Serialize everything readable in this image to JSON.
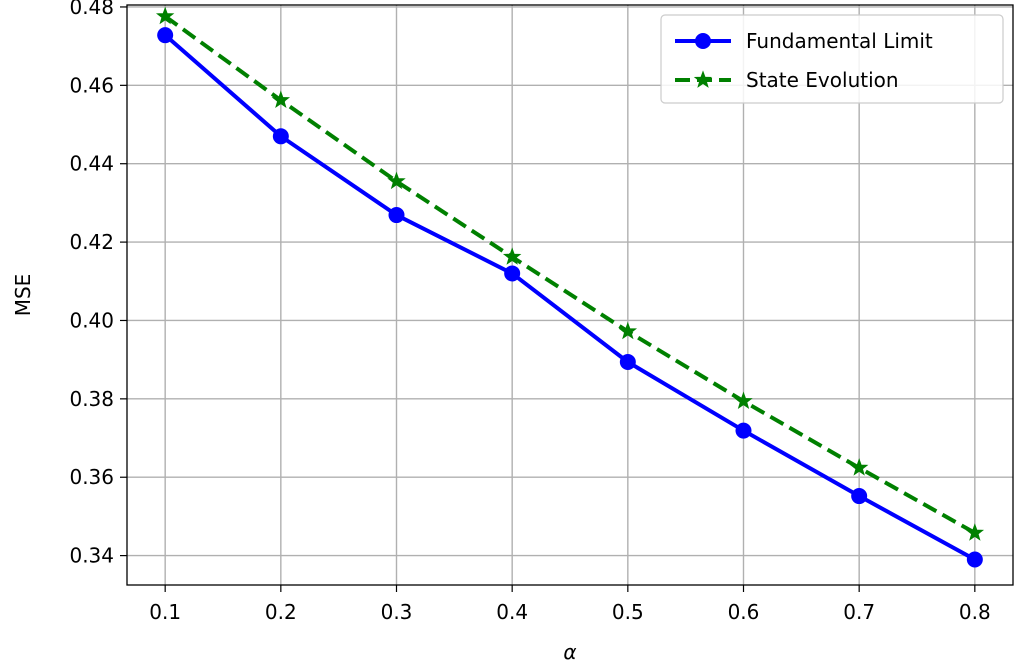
{
  "chart_data": {
    "type": "line",
    "xlabel": "α",
    "ylabel": "MSE",
    "xlim": [
      0.067,
      0.833
    ],
    "ylim": [
      0.3325,
      0.4805
    ],
    "grid": true,
    "legend_position": "top-right",
    "x_ticks": [
      "0.1",
      "0.2",
      "0.3",
      "0.4",
      "0.5",
      "0.6",
      "0.7",
      "0.8"
    ],
    "y_ticks": [
      "0.34",
      "0.36",
      "0.38",
      "0.40",
      "0.42",
      "0.44",
      "0.46",
      "0.48"
    ],
    "x": [
      0.1,
      0.2,
      0.3,
      0.4,
      0.5,
      0.6,
      0.7,
      0.8
    ],
    "series": [
      {
        "name": "Fundamental Limit",
        "values": [
          0.4728,
          0.447,
          0.4269,
          0.412,
          0.3894,
          0.3719,
          0.3552,
          0.339
        ],
        "color": "#0000ff",
        "line_style": "solid",
        "marker": "circle"
      },
      {
        "name": "State Evolution",
        "values": [
          0.4776,
          0.4562,
          0.4355,
          0.4162,
          0.3972,
          0.3794,
          0.3624,
          0.3458
        ],
        "color": "#008000",
        "line_style": "dashed",
        "marker": "star"
      }
    ]
  }
}
